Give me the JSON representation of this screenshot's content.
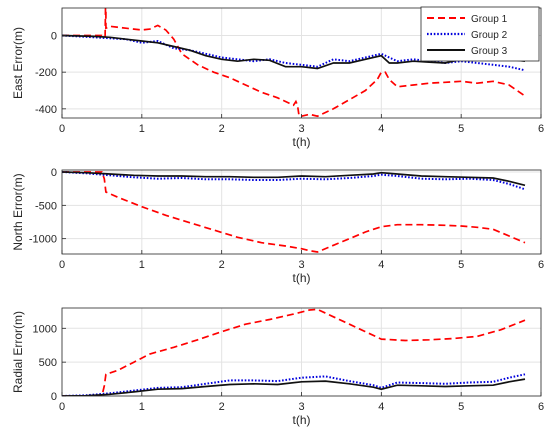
{
  "chart_data": [
    {
      "type": "line",
      "xlabel": "t(h)",
      "ylabel": "East Error(m)",
      "xlim": [
        0,
        6
      ],
      "ylim": [
        -450,
        150
      ],
      "xticks": [
        0,
        1,
        2,
        3,
        4,
        5,
        6
      ],
      "yticks": [
        -400,
        -200,
        0
      ],
      "grid": true,
      "legend": {
        "position": "top-right",
        "entries": [
          "Group 1",
          "Group 2",
          "Group 3"
        ]
      },
      "series": [
        {
          "name": "Group 1",
          "color": "#ff0000",
          "style": "dashed",
          "x": [
            0,
            0.3,
            0.5,
            0.54,
            0.545,
            0.55,
            0.55,
            0.6,
            0.8,
            1.0,
            1.1,
            1.2,
            1.3,
            1.4,
            1.5,
            1.7,
            1.9,
            2.1,
            2.3,
            2.5,
            2.7,
            2.9,
            2.93,
            2.95,
            2.97,
            3.0,
            3.1,
            3.2,
            3.4,
            3.6,
            3.8,
            3.95,
            4.0,
            4.05,
            4.1,
            4.2,
            4.4,
            4.6,
            4.8,
            5.0,
            5.2,
            5.4,
            5.6,
            5.8
          ],
          "y": [
            0,
            0,
            0,
            -10,
            150,
            150,
            40,
            50,
            40,
            30,
            35,
            55,
            30,
            -20,
            -100,
            -160,
            -200,
            -230,
            -270,
            -310,
            -340,
            -380,
            -360,
            -380,
            -440,
            -440,
            -430,
            -440,
            -400,
            -350,
            -300,
            -240,
            -200,
            -200,
            -240,
            -280,
            -270,
            -260,
            -255,
            -250,
            -260,
            -250,
            -270,
            -330
          ]
        },
        {
          "name": "Group 2",
          "color": "#0000dd",
          "style": "dotted",
          "x": [
            0,
            0.4,
            0.6,
            0.8,
            1.0,
            1.2,
            1.4,
            1.6,
            1.8,
            2.0,
            2.2,
            2.4,
            2.6,
            2.8,
            3.0,
            3.2,
            3.4,
            3.6,
            3.8,
            4.0,
            4.1,
            4.2,
            4.4,
            4.6,
            4.8,
            5.0,
            5.2,
            5.4,
            5.6,
            5.8
          ],
          "y": [
            0,
            -10,
            -15,
            -20,
            -40,
            -30,
            -70,
            -80,
            -100,
            -120,
            -130,
            -140,
            -130,
            -150,
            -160,
            -170,
            -130,
            -140,
            -120,
            -100,
            -120,
            -140,
            -130,
            -140,
            -150,
            -140,
            -150,
            -160,
            -170,
            -190
          ]
        },
        {
          "name": "Group 3",
          "color": "#111111",
          "style": "solid",
          "x": [
            0,
            0.4,
            0.6,
            0.8,
            1.0,
            1.2,
            1.4,
            1.6,
            1.8,
            2.0,
            2.2,
            2.4,
            2.6,
            2.8,
            3.0,
            3.2,
            3.4,
            3.6,
            3.8,
            4.0,
            4.1,
            4.2,
            4.4,
            4.6,
            4.8,
            5.0,
            5.2,
            5.4,
            5.6,
            5.8
          ],
          "y": [
            0,
            -5,
            -10,
            -20,
            -30,
            -40,
            -60,
            -80,
            -110,
            -130,
            -140,
            -130,
            -135,
            -170,
            -170,
            -180,
            -150,
            -150,
            -130,
            -110,
            -150,
            -150,
            -140,
            -145,
            -150,
            -130,
            -120,
            -120,
            -130,
            -140
          ]
        }
      ]
    },
    {
      "type": "line",
      "xlabel": "t(h)",
      "ylabel": "North Error(m)",
      "xlim": [
        0,
        6
      ],
      "ylim": [
        -1230,
        30
      ],
      "xticks": [
        0,
        1,
        2,
        3,
        4,
        5,
        6
      ],
      "yticks": [
        -1000,
        -500,
        0
      ],
      "grid": true,
      "series": [
        {
          "name": "Group 1",
          "color": "#ff0000",
          "style": "dashed",
          "x": [
            0,
            0.5,
            0.53,
            0.55,
            0.7,
            1.0,
            1.3,
            1.6,
            1.9,
            2.2,
            2.5,
            2.8,
            3.0,
            3.1,
            3.2,
            3.4,
            3.6,
            3.8,
            4.0,
            4.2,
            4.5,
            4.8,
            5.0,
            5.2,
            5.4,
            5.6,
            5.8
          ],
          "y": [
            0,
            0,
            -100,
            -300,
            -380,
            -520,
            -650,
            -760,
            -870,
            -980,
            -1060,
            -1110,
            -1150,
            -1180,
            -1200,
            -1100,
            -1000,
            -900,
            -820,
            -790,
            -790,
            -800,
            -810,
            -830,
            -860,
            -960,
            -1060
          ]
        },
        {
          "name": "Group 2",
          "color": "#0000dd",
          "style": "dotted",
          "x": [
            0,
            0.3,
            0.6,
            0.9,
            1.2,
            1.5,
            1.8,
            2.1,
            2.4,
            2.7,
            3.0,
            3.3,
            3.6,
            3.9,
            4.0,
            4.2,
            4.5,
            4.8,
            5.1,
            5.4,
            5.6,
            5.8
          ],
          "y": [
            0,
            -20,
            -50,
            -80,
            -100,
            -90,
            -110,
            -110,
            -120,
            -120,
            -100,
            -110,
            -90,
            -60,
            -40,
            -60,
            -100,
            -110,
            -100,
            -120,
            -180,
            -260
          ]
        },
        {
          "name": "Group 3",
          "color": "#111111",
          "style": "solid",
          "x": [
            0,
            0.3,
            0.6,
            0.9,
            1.2,
            1.5,
            1.8,
            2.1,
            2.4,
            2.7,
            3.0,
            3.3,
            3.6,
            3.9,
            4.0,
            4.2,
            4.5,
            4.8,
            5.1,
            5.4,
            5.6,
            5.8
          ],
          "y": [
            0,
            -10,
            -30,
            -50,
            -60,
            -60,
            -70,
            -70,
            -80,
            -80,
            -60,
            -70,
            -50,
            -30,
            -10,
            -30,
            -60,
            -70,
            -80,
            -90,
            -140,
            -200
          ]
        }
      ]
    },
    {
      "type": "line",
      "xlabel": "t(h)",
      "ylabel": "Radial Error(m)",
      "xlim": [
        0,
        6
      ],
      "ylim": [
        0,
        1300
      ],
      "xticks": [
        0,
        1,
        2,
        3,
        4,
        5,
        6
      ],
      "yticks": [
        0,
        500,
        1000
      ],
      "grid": true,
      "series": [
        {
          "name": "Group 1",
          "color": "#ff0000",
          "style": "dashed",
          "x": [
            0,
            0.5,
            0.53,
            0.55,
            0.7,
            0.9,
            1.1,
            1.4,
            1.7,
            2.0,
            2.3,
            2.6,
            2.9,
            3.1,
            3.2,
            3.4,
            3.6,
            3.8,
            4.0,
            4.3,
            4.6,
            4.9,
            5.2,
            5.5,
            5.8
          ],
          "y": [
            0,
            0,
            150,
            320,
            380,
            500,
            620,
            720,
            830,
            950,
            1060,
            1130,
            1210,
            1270,
            1280,
            1170,
            1060,
            950,
            840,
            820,
            830,
            850,
            880,
            980,
            1120
          ]
        },
        {
          "name": "Group 2",
          "color": "#0000dd",
          "style": "dotted",
          "x": [
            0,
            0.3,
            0.6,
            0.9,
            1.2,
            1.5,
            1.8,
            2.1,
            2.4,
            2.7,
            3.0,
            3.3,
            3.6,
            3.9,
            4.0,
            4.2,
            4.5,
            4.8,
            5.1,
            5.4,
            5.6,
            5.8
          ],
          "y": [
            0,
            10,
            40,
            80,
            120,
            130,
            180,
            230,
            230,
            220,
            270,
            290,
            220,
            160,
            120,
            200,
            190,
            180,
            200,
            210,
            270,
            320
          ]
        },
        {
          "name": "Group 3",
          "color": "#111111",
          "style": "solid",
          "x": [
            0,
            0.3,
            0.6,
            0.9,
            1.2,
            1.5,
            1.8,
            2.1,
            2.4,
            2.7,
            3.0,
            3.3,
            3.6,
            3.9,
            4.0,
            4.2,
            4.5,
            4.8,
            5.1,
            5.4,
            5.6,
            5.8
          ],
          "y": [
            0,
            5,
            25,
            60,
            100,
            110,
            140,
            170,
            180,
            170,
            210,
            220,
            180,
            130,
            100,
            160,
            150,
            140,
            150,
            160,
            210,
            250
          ]
        }
      ]
    }
  ]
}
